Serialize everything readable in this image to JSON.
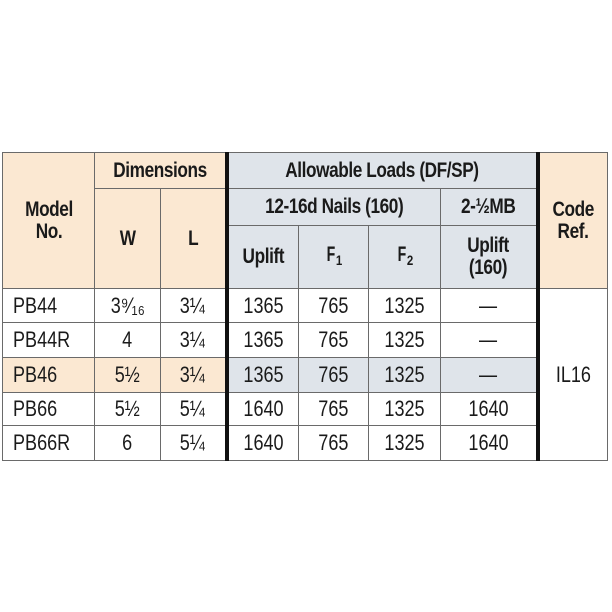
{
  "header": {
    "model": "Model No.",
    "dimensions": "Dimensions",
    "w": "W",
    "l": "L",
    "allowable_loads": "Allowable Loads (DF/SP)",
    "nails": "12-16d Nails (160)",
    "mb": "2-½MB",
    "uplift": "Uplift",
    "f1": "F",
    "f1_sub": "1",
    "f2": "F",
    "f2_sub": "2",
    "uplift160": "Uplift (160)",
    "code_ref": "Code Ref."
  },
  "rows": [
    {
      "model": "PB44",
      "w": "3⁹⁄₁₆",
      "l": "3¼",
      "uplift": "1365",
      "f1": "765",
      "f2": "1325",
      "mb_uplift": "—",
      "highlight": false
    },
    {
      "model": "PB44R",
      "w": "4",
      "l": "3¼",
      "uplift": "1365",
      "f1": "765",
      "f2": "1325",
      "mb_uplift": "—",
      "highlight": false
    },
    {
      "model": "PB46",
      "w": "5½",
      "l": "3¼",
      "uplift": "1365",
      "f1": "765",
      "f2": "1325",
      "mb_uplift": "—",
      "highlight": true
    },
    {
      "model": "PB66",
      "w": "5½",
      "l": "5¼",
      "uplift": "1640",
      "f1": "765",
      "f2": "1325",
      "mb_uplift": "1640",
      "highlight": false
    },
    {
      "model": "PB66R",
      "w": "6",
      "l": "5¼",
      "uplift": "1640",
      "f1": "765",
      "f2": "1325",
      "mb_uplift": "1640",
      "highlight": false
    }
  ],
  "code_ref_value": "IL16",
  "colors": {
    "tan": "#fbe8d2",
    "blue": "#dfe4ea",
    "border": "#6a6a6a",
    "divider": "#111111"
  }
}
